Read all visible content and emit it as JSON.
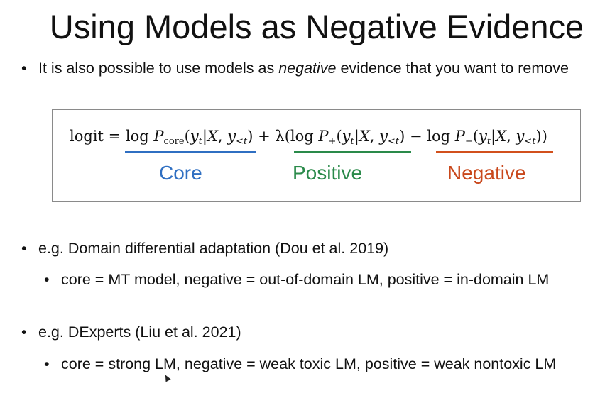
{
  "title": "Using Models as Negative Evidence",
  "bullet_symbol": "•",
  "intro": {
    "before": "It is also possible to use models as ",
    "emphasis": "negative",
    "after": " evidence that you want to remove"
  },
  "formula": {
    "logit": "logit",
    "equals": " = ",
    "log1": "log ",
    "P": "P",
    "core_sub": "core",
    "paren_open": "(",
    "y": "y",
    "t": "t",
    "bar": "|",
    "X": "X",
    "comma": ", ",
    "lt_sub": "<t",
    "paren_close": ")",
    "plus_lambda": " + λ(",
    "log2": "log ",
    "plus_sub": "+",
    "minus_log": " − log ",
    "minus_sub": "−",
    "close_all": "))"
  },
  "labels": {
    "core": "Core",
    "positive": "Positive",
    "negative": "Negative"
  },
  "colors": {
    "core": "#2f6fc2",
    "positive": "#2a8a4a",
    "negative": "#d2501c"
  },
  "examples": [
    {
      "text": "e.g. Domain differential adaptation (Dou et al. 2019)",
      "detail": "core = MT model, negative = out-of-domain LM, positive = in-domain LM"
    },
    {
      "text": "e.g. DExperts (Liu et al. 2021)",
      "detail": "core = strong LM, negative = weak toxic LM, positive = weak nontoxic LM"
    }
  ]
}
